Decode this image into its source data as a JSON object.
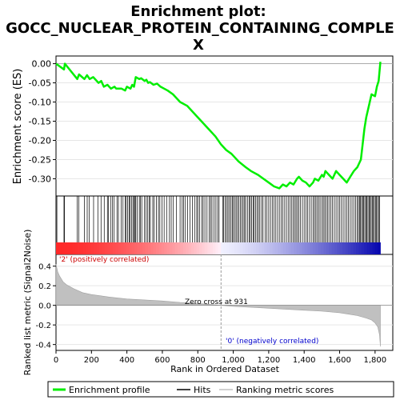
{
  "title_line1": "Enrichment plot:",
  "title_line2": "GOCC_NUCLEAR_PROTEIN_CONTAINING_COMPLE",
  "title_line3": "X",
  "colors": {
    "curve": "#00ee00",
    "hits": "#000000",
    "metric_fill": "#c0c0c0",
    "pos_label": "#cc0000",
    "neg_label": "#0000cc",
    "zero_line": "#999999"
  },
  "chart_data": [
    {
      "type": "line",
      "panel": "enrichment",
      "ylabel": "Enrichment score (ES)",
      "xlim": [
        0,
        1900
      ],
      "ylim": [
        -0.345,
        0.02
      ],
      "yticks": [
        "0.00",
        "-0.05",
        "-0.10",
        "-0.15",
        "-0.20",
        "-0.25",
        "-0.30"
      ],
      "ytick_values": [
        0,
        -0.05,
        -0.1,
        -0.15,
        -0.2,
        -0.25,
        -0.3
      ],
      "x": [
        0,
        45,
        50,
        120,
        130,
        160,
        175,
        190,
        210,
        240,
        255,
        270,
        290,
        310,
        330,
        340,
        370,
        390,
        400,
        420,
        430,
        440,
        450,
        470,
        480,
        500,
        510,
        520,
        530,
        550,
        570,
        590,
        610,
        630,
        660,
        700,
        740,
        780,
        820,
        860,
        900,
        930,
        960,
        990,
        1030,
        1070,
        1100,
        1140,
        1170,
        1200,
        1230,
        1260,
        1280,
        1300,
        1320,
        1340,
        1360,
        1370,
        1390,
        1410,
        1430,
        1450,
        1460,
        1480,
        1500,
        1510,
        1520,
        1540,
        1560,
        1580,
        1600,
        1620,
        1640,
        1660,
        1680,
        1700,
        1720,
        1730,
        1740,
        1750,
        1760,
        1780,
        1800,
        1810,
        1820,
        1830
      ],
      "y": [
        0,
        -0.015,
        0,
        -0.04,
        -0.028,
        -0.04,
        -0.03,
        -0.04,
        -0.035,
        -0.05,
        -0.045,
        -0.06,
        -0.055,
        -0.065,
        -0.06,
        -0.065,
        -0.065,
        -0.07,
        -0.06,
        -0.065,
        -0.055,
        -0.06,
        -0.035,
        -0.04,
        -0.038,
        -0.045,
        -0.042,
        -0.05,
        -0.048,
        -0.055,
        -0.052,
        -0.06,
        -0.065,
        -0.07,
        -0.08,
        -0.1,
        -0.11,
        -0.13,
        -0.15,
        -0.17,
        -0.19,
        -0.21,
        -0.225,
        -0.235,
        -0.255,
        -0.27,
        -0.28,
        -0.29,
        -0.3,
        -0.31,
        -0.32,
        -0.325,
        -0.315,
        -0.32,
        -0.31,
        -0.315,
        -0.3,
        -0.295,
        -0.305,
        -0.31,
        -0.32,
        -0.31,
        -0.3,
        -0.305,
        -0.29,
        -0.295,
        -0.28,
        -0.29,
        -0.3,
        -0.28,
        -0.29,
        -0.3,
        -0.31,
        -0.295,
        -0.28,
        -0.27,
        -0.25,
        -0.21,
        -0.17,
        -0.14,
        -0.12,
        -0.08,
        -0.085,
        -0.06,
        -0.045,
        0.005
      ]
    },
    {
      "type": "scatter",
      "panel": "hits",
      "x": [
        5,
        45,
        48,
        120,
        128,
        160,
        176,
        188,
        212,
        236,
        254,
        272,
        290,
        296,
        308,
        318,
        328,
        344,
        352,
        368,
        378,
        390,
        396,
        404,
        412,
        418,
        426,
        434,
        440,
        446,
        450,
        458,
        470,
        476,
        484,
        498,
        508,
        516,
        526,
        532,
        546,
        554,
        566,
        578,
        586,
        598,
        610,
        624,
        640,
        650,
        662,
        680,
        700,
        712,
        720,
        730,
        742,
        756,
        770,
        782,
        794,
        800,
        810,
        822,
        830,
        840,
        852,
        864,
        872,
        880,
        892,
        902,
        912,
        920,
        940,
        946,
        954,
        962,
        970,
        978,
        986,
        994,
        1000,
        1008,
        1016,
        1024,
        1032,
        1040,
        1048,
        1056,
        1064,
        1070,
        1080,
        1090,
        1096,
        1104,
        1112,
        1118,
        1126,
        1134,
        1142,
        1150,
        1160,
        1168,
        1180,
        1190,
        1200,
        1210,
        1220,
        1230,
        1240,
        1250,
        1260,
        1270,
        1280,
        1290,
        1300,
        1310,
        1320,
        1330,
        1338,
        1346,
        1354,
        1362,
        1370,
        1378,
        1390,
        1400,
        1410,
        1420,
        1430,
        1440,
        1450,
        1458,
        1466,
        1474,
        1482,
        1490,
        1500,
        1508,
        1516,
        1524,
        1532,
        1540,
        1550,
        1560,
        1570,
        1580,
        1590,
        1600,
        1610,
        1620,
        1630,
        1640,
        1650,
        1660,
        1670,
        1680,
        1690,
        1700,
        1706,
        1712,
        1718,
        1724,
        1730,
        1736,
        1742,
        1748,
        1754,
        1760,
        1766,
        1772,
        1778,
        1784,
        1790,
        1796,
        1802,
        1808,
        1814,
        1820,
        1826
      ]
    },
    {
      "type": "area",
      "panel": "ranked-metric",
      "xlabel": "Rank in Ordered Dataset",
      "ylabel": "Ranked list metric (Signal2Noise)",
      "xlim": [
        0,
        1900
      ],
      "ylim": [
        -0.46,
        0.52
      ],
      "xticks": [
        "0",
        "200",
        "400",
        "600",
        "800",
        "1,000",
        "1,200",
        "1,400",
        "1,600",
        "1,800"
      ],
      "xtick_values": [
        0,
        200,
        400,
        600,
        800,
        1000,
        1200,
        1400,
        1600,
        1800
      ],
      "yticks": [
        "0.4",
        "0.2",
        "0.0",
        "-0.2",
        "-0.4"
      ],
      "ytick_values": [
        0.4,
        0.2,
        0,
        -0.2,
        -0.4
      ],
      "x": [
        0,
        10,
        20,
        40,
        60,
        100,
        150,
        200,
        300,
        400,
        500,
        600,
        700,
        800,
        931,
        1000,
        1100,
        1200,
        1300,
        1400,
        1500,
        1600,
        1650,
        1700,
        1750,
        1780,
        1800,
        1815,
        1825,
        1830
      ],
      "y": [
        0.42,
        0.34,
        0.3,
        0.24,
        0.21,
        0.17,
        0.13,
        0.11,
        0.085,
        0.065,
        0.055,
        0.045,
        0.03,
        0.02,
        0,
        -0.01,
        -0.02,
        -0.03,
        -0.04,
        -0.05,
        -0.06,
        -0.075,
        -0.09,
        -0.105,
        -0.13,
        -0.15,
        -0.18,
        -0.22,
        -0.3,
        -0.42
      ],
      "zero_cross_rank": 931,
      "zero_cross_label": "Zero cross at 931",
      "pos_label": "'2' (positively correlated)",
      "neg_label": "'0' (negatively correlated)"
    }
  ],
  "legend": {
    "items": [
      {
        "label": "Enrichment profile",
        "swatch": "curve"
      },
      {
        "label": "Hits",
        "swatch": "hits"
      },
      {
        "label": "Ranking metric scores",
        "swatch": "metric_fill"
      }
    ]
  }
}
